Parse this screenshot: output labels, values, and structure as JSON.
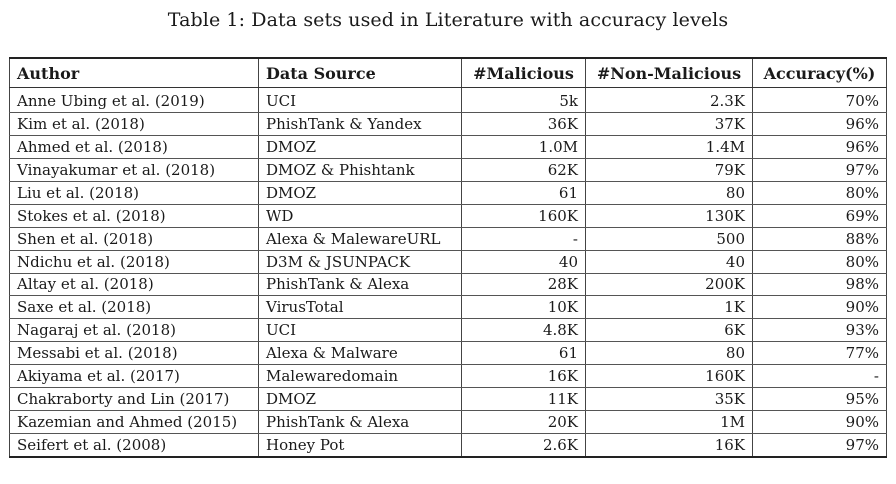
{
  "caption": "Table 1: Data sets used in Literature with accuracy levels",
  "table": {
    "headers": [
      "Author",
      "Data Source",
      "#Malicious",
      "#Non-Malicious",
      "Accuracy(%)"
    ],
    "rows": [
      [
        "Anne Ubing et al. (2019)",
        "UCI",
        "5k",
        "2.3K",
        "70%"
      ],
      [
        "Kim et al. (2018)",
        "PhishTank & Yandex",
        "36K",
        "37K",
        "96%"
      ],
      [
        "Ahmed et al. (2018)",
        "DMOZ",
        "1.0M",
        "1.4M",
        "96%"
      ],
      [
        "Vinayakumar et al. (2018)",
        "DMOZ & Phishtank",
        "62K",
        "79K",
        "97%"
      ],
      [
        "Liu et al. (2018)",
        "DMOZ",
        "61",
        "80",
        "80%"
      ],
      [
        "Stokes et al. (2018)",
        "WD",
        "160K",
        "130K",
        "69%"
      ],
      [
        "Shen et al. (2018)",
        "Alexa & MalewareURL",
        "-",
        "500",
        "88%"
      ],
      [
        "Ndichu et al. (2018)",
        "D3M & JSUNPACK",
        "40",
        "40",
        "80%"
      ],
      [
        "Altay et al. (2018)",
        "PhishTank & Alexa",
        "28K",
        "200K",
        "98%"
      ],
      [
        "Saxe et al. (2018)",
        "VirusTotal",
        "10K",
        "1K",
        "90%"
      ],
      [
        "Nagaraj et al. (2018)",
        "UCI",
        "4.8K",
        "6K",
        "93%"
      ],
      [
        "Messabi et al. (2018)",
        "Alexa & Malware",
        "61",
        "80",
        "77%"
      ],
      [
        "Akiyama et al. (2017)",
        "Malewaredomain",
        "16K",
        "160K",
        "-"
      ],
      [
        "Chakraborty and Lin (2017)",
        "DMOZ",
        "11K",
        "35K",
        "95%"
      ],
      [
        "Kazemian and Ahmed (2015)",
        "PhishTank & Alexa",
        "20K",
        "1M",
        "90%"
      ],
      [
        "Seifert et al. (2008)",
        "Honey Pot",
        "2.6K",
        "16K",
        "97%"
      ]
    ]
  }
}
